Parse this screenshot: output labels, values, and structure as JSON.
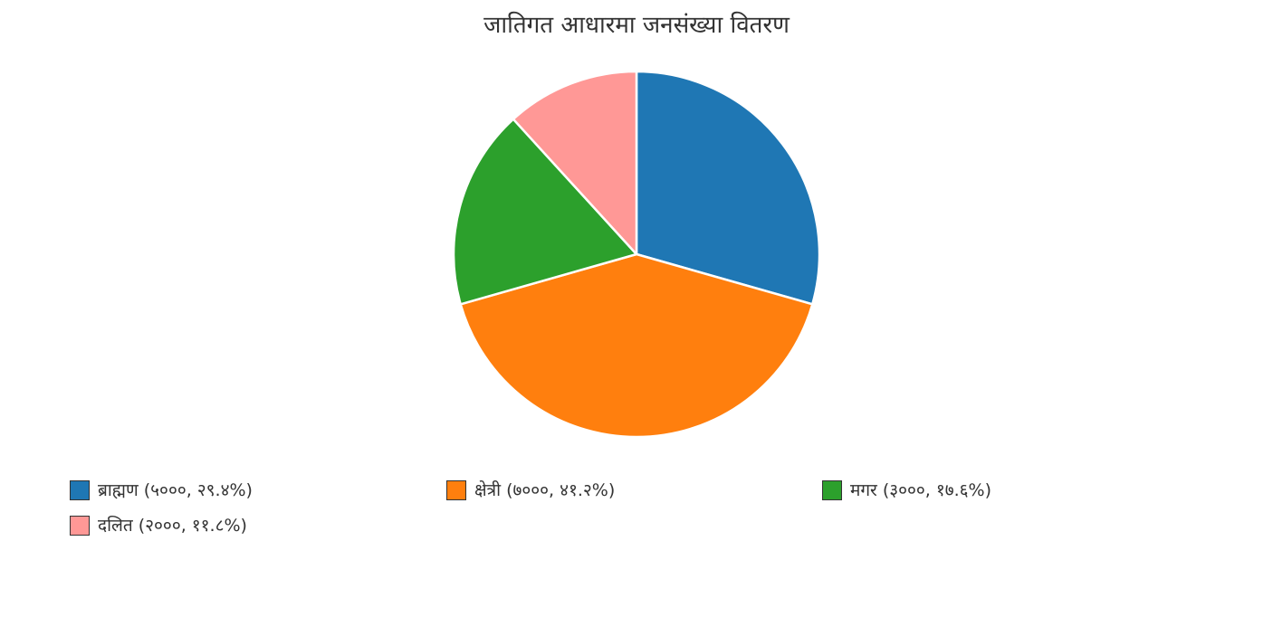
{
  "chart_data": {
    "type": "pie",
    "title": "जातिगत आधारमा जनसंख्या वितरण",
    "slices": [
      {
        "label": "ब्राह्मण",
        "value": 5000,
        "legend_text": "ब्राह्मण (५०००, २९.४%)",
        "color": "#1f77b4"
      },
      {
        "label": "क्षेत्री",
        "value": 7000,
        "legend_text": "क्षेत्री (७०००, ४१.२%)",
        "color": "#ff7f0e"
      },
      {
        "label": "मगर",
        "value": 3000,
        "legend_text": "मगर (३०००, १७.६%)",
        "color": "#2ca02c"
      },
      {
        "label": "दलित",
        "value": 2000,
        "legend_text": "दलित (२०००, ११.८%)",
        "color": "#ff9896"
      }
    ],
    "start_angle": "12 o'clock",
    "direction": "clockwise",
    "legend_position": "bottom",
    "slice_border_color": "#ffffff"
  }
}
